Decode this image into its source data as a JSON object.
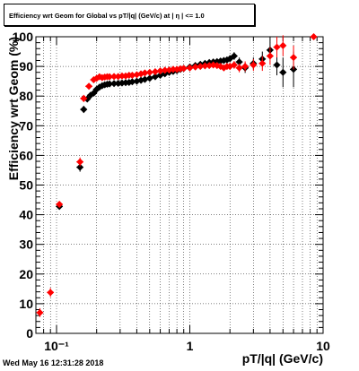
{
  "header": {
    "title": "Efficiency wrt Geom for Global vs pT/|q| (GeV/c) at | η | <= 1.0"
  },
  "footer": {
    "timestamp": "Wed May 16 12:31:28 2018"
  },
  "chart_data": {
    "type": "scatter",
    "title": "Efficiency wrt Geom for Global vs pT/|q| (GeV/c) at | η | <= 1.0",
    "xlabel": "pT/|q| (GeV/c)",
    "ylabel": "Efficiency wrt Geom (%)",
    "xscale": "log",
    "xlim": [
      0.07,
      10
    ],
    "ylim": [
      0,
      100
    ],
    "x_ticks": [
      0.1,
      1,
      10
    ],
    "x_tick_labels": [
      "10⁻¹",
      "1",
      "10"
    ],
    "y_ticks": [
      0,
      10,
      20,
      30,
      40,
      50,
      60,
      70,
      80,
      90,
      100
    ],
    "y_tick_labels": [
      "0",
      "10",
      "20",
      "30",
      "40",
      "50",
      "60",
      "70",
      "80",
      "90",
      "100"
    ],
    "grid": true,
    "colors": {
      "black": "#000000",
      "red": "#ff0000"
    },
    "series": [
      {
        "color": "#000000",
        "points": [
          [
            0.105,
            42.8
          ],
          [
            0.15,
            56.0
          ],
          [
            0.16,
            75.5
          ],
          [
            0.17,
            79.0
          ],
          [
            0.18,
            80.3
          ],
          [
            0.19,
            81.0
          ],
          [
            0.2,
            82.3
          ],
          [
            0.21,
            83.0
          ],
          [
            0.22,
            83.5
          ],
          [
            0.23,
            83.8
          ],
          [
            0.24,
            84.0
          ],
          [
            0.25,
            84.1
          ],
          [
            0.27,
            84.2
          ],
          [
            0.29,
            84.3
          ],
          [
            0.31,
            84.4
          ],
          [
            0.33,
            84.5
          ],
          [
            0.35,
            84.6
          ],
          [
            0.37,
            84.8
          ],
          [
            0.4,
            85.0
          ],
          [
            0.43,
            85.3
          ],
          [
            0.46,
            85.6
          ],
          [
            0.5,
            86.0
          ],
          [
            0.55,
            86.5
          ],
          [
            0.6,
            87.0
          ],
          [
            0.65,
            87.5
          ],
          [
            0.7,
            88.0
          ],
          [
            0.75,
            88.3
          ],
          [
            0.8,
            88.6
          ],
          [
            0.85,
            89.0
          ],
          [
            0.9,
            89.3
          ],
          [
            1.0,
            89.8
          ],
          [
            1.1,
            90.3
          ],
          [
            1.2,
            90.7
          ],
          [
            1.3,
            91.0
          ],
          [
            1.4,
            91.3
          ],
          [
            1.5,
            91.5
          ],
          [
            1.6,
            91.6
          ],
          [
            1.7,
            91.8
          ],
          [
            1.8,
            92.0
          ],
          [
            1.9,
            92.2
          ],
          [
            2.0,
            92.6
          ],
          [
            2.15,
            93.5
          ],
          [
            2.35,
            91.5
          ],
          [
            2.6,
            89.5
          ],
          [
            3.0,
            91.0
          ],
          [
            3.5,
            92.5
          ],
          [
            4.0,
            95.5
          ],
          [
            4.5,
            90.5
          ],
          [
            5.0,
            88.0
          ],
          [
            6.0,
            89.0
          ]
        ],
        "errors": [
          [
            0.105,
            1.0
          ],
          [
            0.15,
            1.5
          ],
          [
            0.16,
            1.2
          ],
          [
            0.17,
            1.0
          ],
          [
            0.18,
            0.8
          ],
          [
            0.19,
            0.8
          ],
          [
            0.2,
            0.8
          ],
          [
            0.21,
            0.7
          ],
          [
            0.22,
            0.7
          ],
          [
            0.23,
            0.7
          ],
          [
            0.24,
            0.7
          ],
          [
            0.25,
            0.7
          ],
          [
            0.27,
            0.6
          ],
          [
            0.29,
            0.6
          ],
          [
            0.31,
            0.6
          ],
          [
            0.33,
            0.6
          ],
          [
            0.35,
            0.6
          ],
          [
            0.37,
            0.6
          ],
          [
            0.4,
            0.6
          ],
          [
            0.43,
            0.6
          ],
          [
            0.46,
            0.6
          ],
          [
            0.5,
            0.6
          ],
          [
            0.55,
            0.6
          ],
          [
            0.6,
            0.6
          ],
          [
            0.65,
            0.6
          ],
          [
            0.7,
            0.6
          ],
          [
            0.75,
            0.6
          ],
          [
            0.8,
            0.6
          ],
          [
            0.85,
            0.6
          ],
          [
            0.9,
            0.6
          ],
          [
            1.0,
            0.7
          ],
          [
            1.1,
            0.7
          ],
          [
            1.2,
            0.7
          ],
          [
            1.3,
            0.8
          ],
          [
            1.4,
            0.8
          ],
          [
            1.5,
            0.9
          ],
          [
            1.6,
            0.9
          ],
          [
            1.7,
            1.0
          ],
          [
            1.8,
            1.0
          ],
          [
            1.9,
            1.1
          ],
          [
            2.0,
            1.2
          ],
          [
            2.15,
            1.3
          ],
          [
            2.35,
            1.5
          ],
          [
            2.6,
            1.7
          ],
          [
            3.0,
            2.0
          ],
          [
            3.5,
            2.5
          ],
          [
            4.0,
            3.0
          ],
          [
            4.5,
            3.5
          ],
          [
            5.0,
            5.0
          ],
          [
            6.0,
            6.0
          ]
        ]
      },
      {
        "color": "#ff0000",
        "points": [
          [
            0.075,
            7.0
          ],
          [
            0.09,
            13.8
          ],
          [
            0.105,
            43.5
          ],
          [
            0.15,
            57.8
          ],
          [
            0.16,
            79.2
          ],
          [
            0.175,
            83.3
          ],
          [
            0.19,
            85.5
          ],
          [
            0.2,
            86.0
          ],
          [
            0.21,
            86.5
          ],
          [
            0.22,
            86.2
          ],
          [
            0.23,
            86.4
          ],
          [
            0.24,
            86.5
          ],
          [
            0.25,
            86.5
          ],
          [
            0.27,
            86.6
          ],
          [
            0.29,
            86.6
          ],
          [
            0.31,
            86.8
          ],
          [
            0.33,
            86.8
          ],
          [
            0.35,
            87.0
          ],
          [
            0.37,
            87.0
          ],
          [
            0.4,
            87.2
          ],
          [
            0.43,
            87.5
          ],
          [
            0.46,
            87.8
          ],
          [
            0.5,
            88.0
          ],
          [
            0.55,
            88.2
          ],
          [
            0.6,
            88.5
          ],
          [
            0.65,
            88.7
          ],
          [
            0.7,
            88.8
          ],
          [
            0.75,
            89.0
          ],
          [
            0.8,
            89.0
          ],
          [
            0.85,
            89.2
          ],
          [
            0.9,
            89.3
          ],
          [
            1.0,
            89.5
          ],
          [
            1.1,
            89.8
          ],
          [
            1.2,
            90.0
          ],
          [
            1.3,
            90.2
          ],
          [
            1.4,
            90.3
          ],
          [
            1.5,
            90.5
          ],
          [
            1.6,
            90.3
          ],
          [
            1.7,
            90.0
          ],
          [
            1.8,
            89.5
          ],
          [
            1.9,
            90.0
          ],
          [
            2.0,
            90.0
          ],
          [
            2.15,
            90.5
          ],
          [
            2.35,
            89.5
          ],
          [
            2.6,
            90.0
          ],
          [
            3.0,
            90.5
          ],
          [
            3.5,
            91.0
          ],
          [
            4.0,
            93.5
          ],
          [
            4.5,
            96.5
          ],
          [
            5.0,
            97.0
          ],
          [
            6.0,
            93.0
          ],
          [
            8.5,
            100.0
          ]
        ],
        "errors": [
          [
            0.075,
            1.5
          ],
          [
            0.09,
            1.5
          ],
          [
            0.105,
            1.0
          ],
          [
            0.15,
            1.5
          ],
          [
            0.16,
            1.2
          ],
          [
            0.175,
            1.0
          ],
          [
            0.19,
            0.8
          ],
          [
            0.2,
            0.8
          ],
          [
            0.21,
            0.7
          ],
          [
            0.22,
            0.7
          ],
          [
            0.23,
            0.7
          ],
          [
            0.24,
            0.7
          ],
          [
            0.25,
            0.7
          ],
          [
            0.27,
            0.6
          ],
          [
            0.29,
            0.6
          ],
          [
            0.31,
            0.6
          ],
          [
            0.33,
            0.6
          ],
          [
            0.35,
            0.6
          ],
          [
            0.37,
            0.6
          ],
          [
            0.4,
            0.6
          ],
          [
            0.43,
            0.6
          ],
          [
            0.46,
            0.6
          ],
          [
            0.5,
            0.6
          ],
          [
            0.55,
            0.6
          ],
          [
            0.6,
            0.6
          ],
          [
            0.65,
            0.6
          ],
          [
            0.7,
            0.6
          ],
          [
            0.75,
            0.6
          ],
          [
            0.8,
            0.6
          ],
          [
            0.85,
            0.6
          ],
          [
            0.9,
            0.6
          ],
          [
            1.0,
            0.7
          ],
          [
            1.1,
            0.7
          ],
          [
            1.2,
            0.7
          ],
          [
            1.3,
            0.8
          ],
          [
            1.4,
            0.8
          ],
          [
            1.5,
            0.9
          ],
          [
            1.6,
            0.9
          ],
          [
            1.7,
            1.0
          ],
          [
            1.8,
            1.0
          ],
          [
            1.9,
            1.1
          ],
          [
            2.0,
            1.2
          ],
          [
            2.15,
            1.3
          ],
          [
            2.35,
            1.5
          ],
          [
            2.6,
            1.7
          ],
          [
            3.0,
            2.0
          ],
          [
            3.5,
            2.5
          ],
          [
            4.0,
            3.0
          ],
          [
            4.5,
            3.5
          ],
          [
            5.0,
            3.5
          ],
          [
            6.0,
            4.0
          ],
          [
            8.5,
            0.5
          ]
        ]
      }
    ]
  }
}
